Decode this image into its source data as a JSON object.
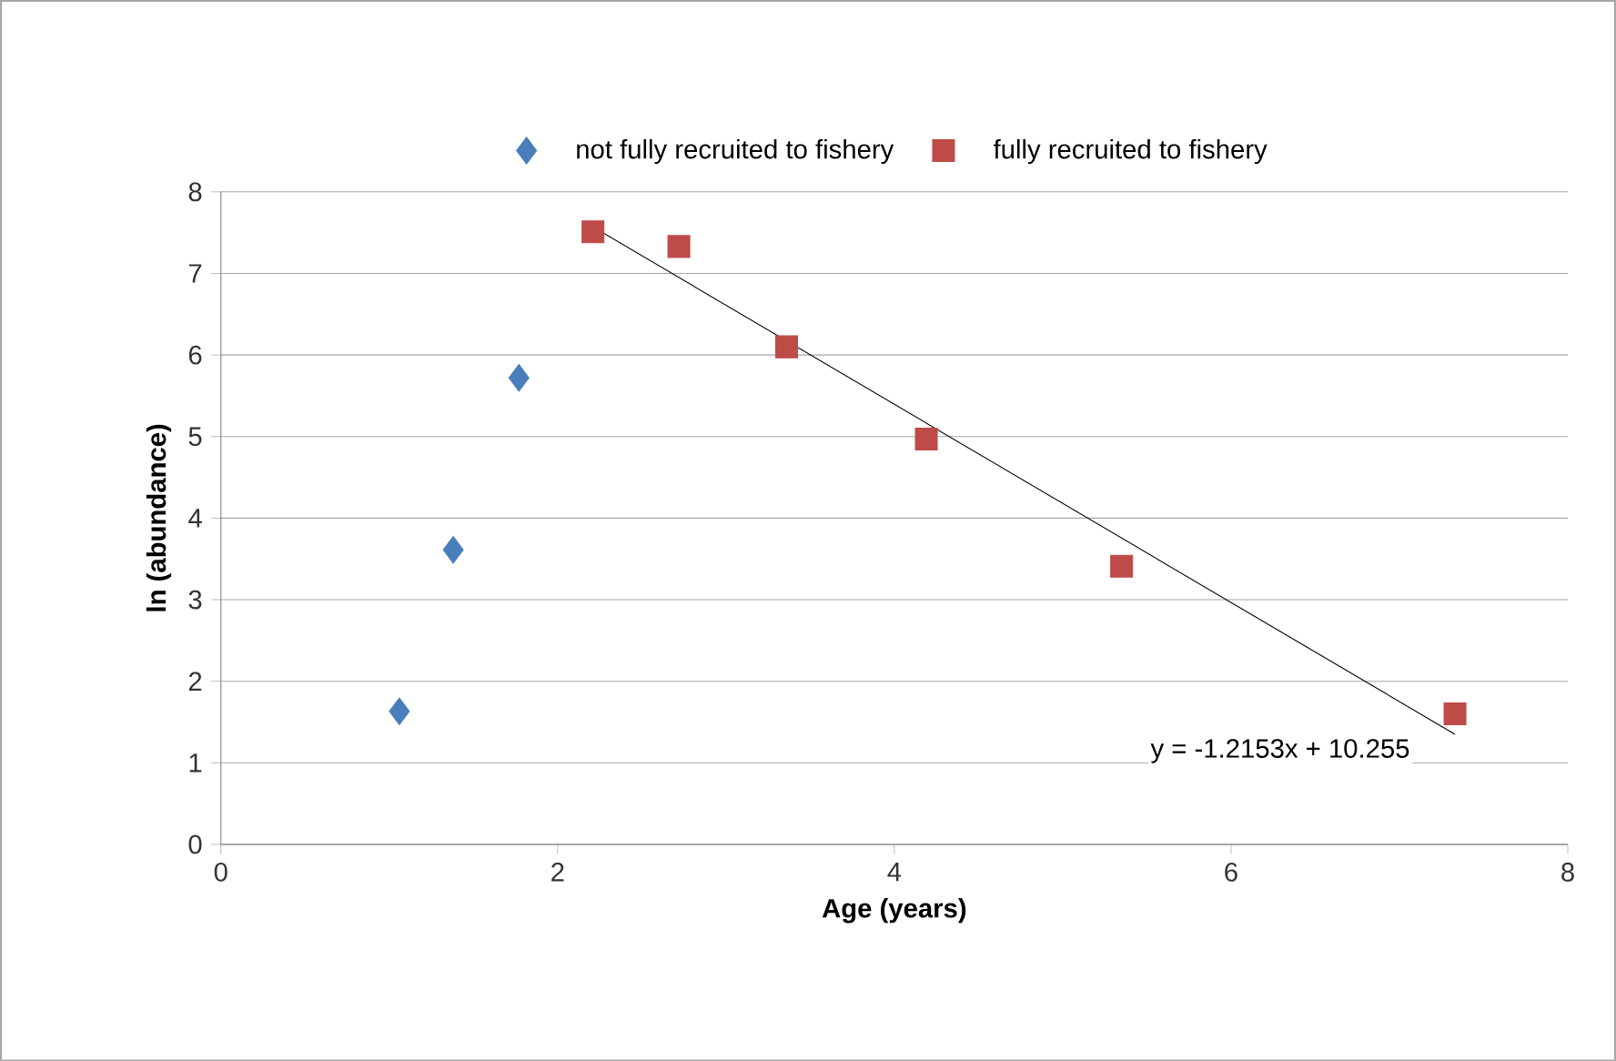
{
  "chart_data": {
    "type": "scatter",
    "xlabel": "Age (years)",
    "ylabel": "ln (abundance)",
    "xlim": [
      0,
      8
    ],
    "ylim": [
      0,
      8
    ],
    "xticks": [
      0,
      2,
      4,
      6,
      8
    ],
    "yticks": [
      0,
      1,
      2,
      3,
      4,
      5,
      6,
      7,
      8
    ],
    "grid": "y",
    "legend": "top",
    "series": [
      {
        "name": "not fully recruited to fishery",
        "type": "scatter",
        "marker": "diamond",
        "color": "#4a7ebb",
        "x": [
          1.06,
          1.38,
          1.77
        ],
        "values": [
          1.63,
          3.61,
          5.72
        ]
      },
      {
        "name": "fully recruited to fishery",
        "type": "scatter",
        "marker": "square",
        "color": "#be4b48",
        "x": [
          2.21,
          2.72,
          3.36,
          4.19,
          5.35,
          7.33
        ],
        "values": [
          7.51,
          7.33,
          6.1,
          4.97,
          3.41,
          1.6
        ]
      },
      {
        "type": "line",
        "marker": "none",
        "color": "#000000",
        "x": [
          2.21,
          7.33
        ],
        "values": [
          7.57,
          1.35
        ]
      }
    ],
    "annotations": [
      "y = -1.2153x + 10.255"
    ]
  }
}
